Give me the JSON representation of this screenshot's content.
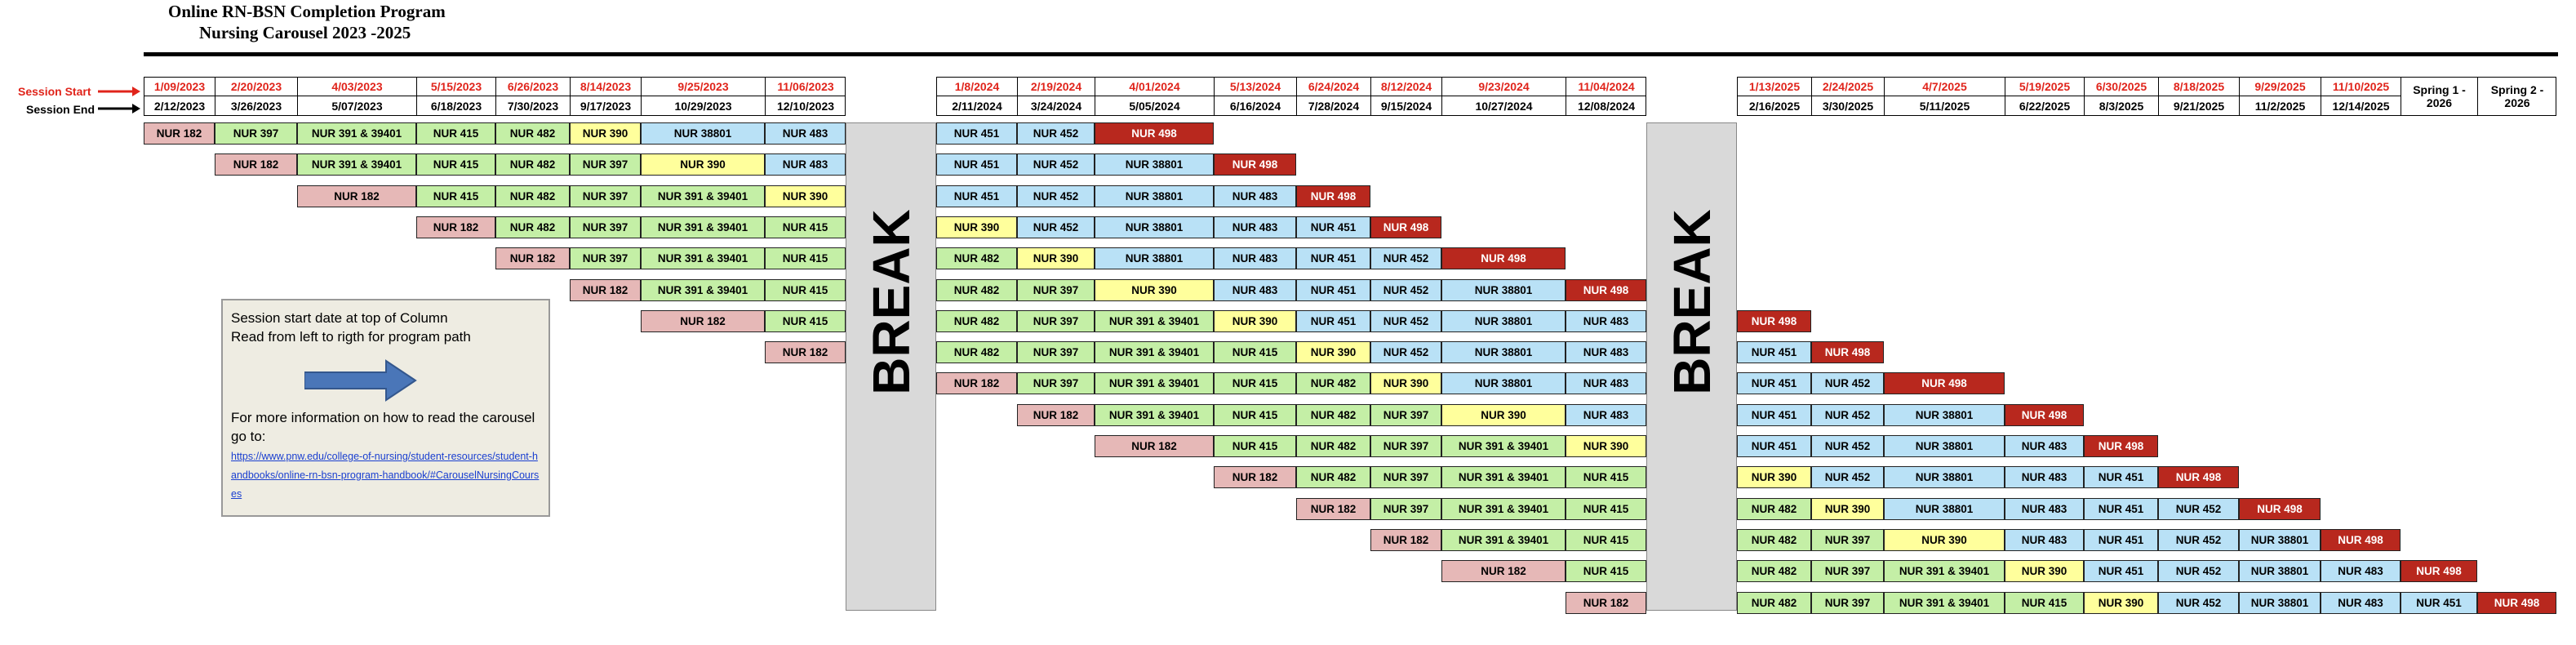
{
  "header": {
    "title": "Online RN-BSN Completion Program",
    "subtitle": "Nursing Carousel  2023 -2025"
  },
  "row_labels": {
    "start": "Session Start",
    "end": "Session End"
  },
  "column_groups": [
    [
      {
        "start": "1/09/2023",
        "end": "2/12/2023"
      },
      {
        "start": "2/20/2023",
        "end": "3/26/2023"
      },
      {
        "start": "4/03/2023",
        "end": "5/07/2023"
      },
      {
        "start": "5/15/2023",
        "end": "6/18/2023"
      },
      {
        "start": "6/26/2023",
        "end": "7/30/2023"
      },
      {
        "start": "8/14/2023",
        "end": "9/17/2023"
      },
      {
        "start": "9/25/2023",
        "end": "10/29/2023"
      },
      {
        "start": "11/06/2023",
        "end": "12/10/2023"
      }
    ],
    [
      {
        "start": "1/8/2024",
        "end": "2/11/2024"
      },
      {
        "start": "2/19/2024",
        "end": "3/24/2024"
      },
      {
        "start": "4/01/2024",
        "end": "5/05/2024"
      },
      {
        "start": "5/13/2024",
        "end": "6/16/2024"
      },
      {
        "start": "6/24/2024",
        "end": "7/28/2024"
      },
      {
        "start": "8/12/2024",
        "end": "9/15/2024"
      },
      {
        "start": "9/23/2024",
        "end": "10/27/2024"
      },
      {
        "start": "11/04/2024",
        "end": "12/08/2024"
      }
    ],
    [
      {
        "start": "1/13/2025",
        "end": "2/16/2025"
      },
      {
        "start": "2/24/2025",
        "end": "3/30/2025"
      },
      {
        "start": "4/7/2025",
        "end": "5/11/2025"
      },
      {
        "start": "5/19/2025",
        "end": "6/22/2025"
      },
      {
        "start": "6/30/2025",
        "end": "8/3/2025"
      },
      {
        "start": "8/18/2025",
        "end": "9/21/2025"
      },
      {
        "start": "9/29/2025",
        "end": "11/2/2025"
      },
      {
        "start": "11/10/2025",
        "end": "12/14/2025"
      },
      {
        "label": "Spring 1 - 2026"
      },
      {
        "label": "Spring 2 - 2026"
      }
    ]
  ],
  "break_labels": [
    "BREAK",
    "BREAK"
  ],
  "palette": {
    "NUR 182": "#e6b8b7",
    "NUR 397": "#c4efa6",
    "NUR 391 & 39401": "#c4efa6",
    "NUR 415": "#c4efa6",
    "NUR 482": "#c4efa6",
    "NUR 390": "#ffff9c",
    "NUR 38801": "#b9e1f6",
    "NUR 483": "#b9e1f6",
    "NUR 451": "#b9e1f6",
    "NUR 452": "#b9e1f6",
    "NUR 498": "#b8281e"
  },
  "rows": [
    [
      "NUR 182",
      "NUR 397",
      "NUR 391 & 39401",
      "NUR 415",
      "NUR 482",
      "NUR 390",
      "NUR 38801",
      "NUR 483",
      "NUR 451",
      "NUR 452",
      "NUR 498"
    ],
    [
      null,
      "NUR 182",
      "NUR 391 & 39401",
      "NUR 415",
      "NUR 482",
      "NUR 397",
      "NUR 390",
      "NUR 483",
      "NUR 451",
      "NUR 452",
      "NUR 38801",
      "NUR 498"
    ],
    [
      null,
      null,
      "NUR 182",
      "NUR 415",
      "NUR 482",
      "NUR 397",
      "NUR 391 & 39401",
      "NUR 390",
      "NUR 451",
      "NUR 452",
      "NUR 38801",
      "NUR 483",
      "NUR 498"
    ],
    [
      null,
      null,
      null,
      "NUR 182",
      "NUR 482",
      "NUR 397",
      "NUR 391 & 39401",
      "NUR 415",
      "NUR 390",
      "NUR 452",
      "NUR 38801",
      "NUR 483",
      "NUR 451",
      "NUR 498"
    ],
    [
      null,
      null,
      null,
      null,
      "NUR 182",
      "NUR 397",
      "NUR 391 & 39401",
      "NUR 415",
      "NUR 482",
      "NUR 390",
      "NUR 38801",
      "NUR 483",
      "NUR 451",
      "NUR 452",
      "NUR 498"
    ],
    [
      null,
      null,
      null,
      null,
      null,
      "NUR 182",
      "NUR 391 & 39401",
      "NUR 415",
      "NUR 482",
      "NUR 397",
      "NUR 390",
      "NUR 483",
      "NUR 451",
      "NUR 452",
      "NUR 38801",
      "NUR 498"
    ],
    [
      null,
      null,
      null,
      null,
      null,
      null,
      "NUR 182",
      "NUR 415",
      "NUR 482",
      "NUR 397",
      "NUR 391 & 39401",
      "NUR 390",
      "NUR 451",
      "NUR 452",
      "NUR 38801",
      "NUR 483",
      "NUR 498"
    ],
    [
      null,
      null,
      null,
      null,
      null,
      null,
      null,
      "NUR 182",
      "NUR 482",
      "NUR 397",
      "NUR 391 & 39401",
      "NUR 415",
      "NUR 390",
      "NUR 452",
      "NUR 38801",
      "NUR 483",
      "NUR 451",
      "NUR 498"
    ],
    [
      null,
      null,
      null,
      null,
      null,
      null,
      null,
      null,
      "NUR 182",
      "NUR 397",
      "NUR 391 & 39401",
      "NUR 415",
      "NUR 482",
      "NUR 390",
      "NUR 38801",
      "NUR 483",
      "NUR 451",
      "NUR 452",
      "NUR 498"
    ],
    [
      null,
      null,
      null,
      null,
      null,
      null,
      null,
      null,
      null,
      "NUR 182",
      "NUR 391 & 39401",
      "NUR 415",
      "NUR 482",
      "NUR 397",
      "NUR 390",
      "NUR 483",
      "NUR 451",
      "NUR 452",
      "NUR 38801",
      "NUR 498"
    ],
    [
      null,
      null,
      null,
      null,
      null,
      null,
      null,
      null,
      null,
      null,
      "NUR 182",
      "NUR 415",
      "NUR 482",
      "NUR 397",
      "NUR 391 & 39401",
      "NUR 390",
      "NUR 451",
      "NUR 452",
      "NUR 38801",
      "NUR 483",
      "NUR 498"
    ],
    [
      null,
      null,
      null,
      null,
      null,
      null,
      null,
      null,
      null,
      null,
      null,
      "NUR 182",
      "NUR 482",
      "NUR 397",
      "NUR 391 & 39401",
      "NUR 415",
      "NUR 390",
      "NUR 452",
      "NUR 38801",
      "NUR 483",
      "NUR 451",
      "NUR 498"
    ],
    [
      null,
      null,
      null,
      null,
      null,
      null,
      null,
      null,
      null,
      null,
      null,
      null,
      "NUR 182",
      "NUR 397",
      "NUR 391 & 39401",
      "NUR 415",
      "NUR 482",
      "NUR 390",
      "NUR 38801",
      "NUR 483",
      "NUR 451",
      "NUR 452",
      "NUR 498"
    ],
    [
      null,
      null,
      null,
      null,
      null,
      null,
      null,
      null,
      null,
      null,
      null,
      null,
      null,
      "NUR 182",
      "NUR 391 & 39401",
      "NUR 415",
      "NUR 482",
      "NUR 397",
      "NUR 390",
      "NUR 483",
      "NUR 451",
      "NUR 452",
      "NUR 38801",
      "NUR 498"
    ],
    [
      null,
      null,
      null,
      null,
      null,
      null,
      null,
      null,
      null,
      null,
      null,
      null,
      null,
      null,
      "NUR 182",
      "NUR 415",
      "NUR 482",
      "NUR 397",
      "NUR 391 & 39401",
      "NUR 390",
      "NUR 451",
      "NUR 452",
      "NUR 38801",
      "NUR 483",
      "NUR 498"
    ],
    [
      null,
      null,
      null,
      null,
      null,
      null,
      null,
      null,
      null,
      null,
      null,
      null,
      null,
      null,
      null,
      "NUR 182",
      "NUR 482",
      "NUR 397",
      "NUR 391 & 39401",
      "NUR 415",
      "NUR 390",
      "NUR 452",
      "NUR 38801",
      "NUR 483",
      "NUR 451",
      "NUR 498"
    ]
  ],
  "note": {
    "lines": [
      "Session start date at top of Column",
      "Read from left to rigth for program path"
    ],
    "more": "For more information on how to read the carousel go to:",
    "link": "https://www.pnw.edu/college-of-nursing/student-resources/student-handbooks/online-rn-bsn-program-handbook/#CarouselNursingCourses"
  }
}
